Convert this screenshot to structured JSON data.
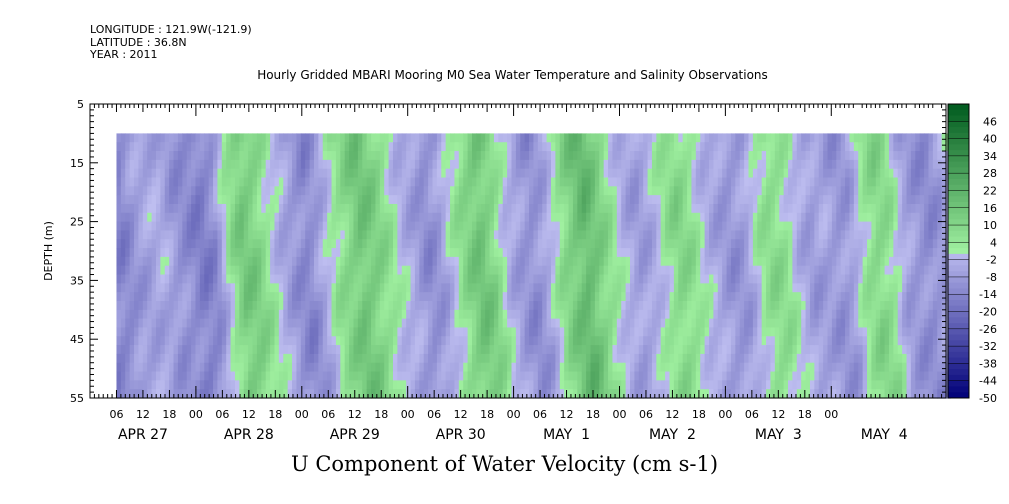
{
  "header": {
    "longitude": "LONGITUDE : 121.9W(-121.9)",
    "latitude": "LATITUDE : 36.8N",
    "year": "YEAR : 2011",
    "title": "Hourly Gridded MBARI Mooring M0 Sea Water Temperature and Salinity Observations"
  },
  "chart_data": {
    "type": "heatmap",
    "title": "Hourly Gridded MBARI Mooring M0 Sea Water Temperature and Salinity Observations",
    "xlabel": "U Component of Water Velocity (cm s-1)",
    "ylabel": "DEPTH (m)",
    "y_ticks": [
      5,
      15,
      25,
      35,
      45,
      55
    ],
    "ylim": [
      55,
      5
    ],
    "y_data_range": [
      10,
      55
    ],
    "x_hour_ticks": [
      "06",
      "12",
      "18",
      "00",
      "06",
      "12",
      "18",
      "00",
      "06",
      "12",
      "18",
      "00",
      "06",
      "12",
      "18",
      "00",
      "06",
      "12",
      "18",
      "00",
      "06",
      "12",
      "18",
      "00",
      "06",
      "12",
      "18",
      "00"
    ],
    "x_day_labels": [
      "APR 27",
      "APR 28",
      "APR 29",
      "APR 30",
      "MAY  1",
      "MAY  2",
      "MAY  3",
      "MAY  4"
    ],
    "time_range_hours": [
      0,
      194
    ],
    "data_time_range_hours": [
      6,
      195
    ],
    "colorbar": {
      "levels": [
        "46",
        "40",
        "34",
        "28",
        "22",
        "16",
        "10",
        "4",
        "-2",
        "-8",
        "-14",
        "-20",
        "-26",
        "-32",
        "-38",
        "-44",
        "-50"
      ],
      "min": -50,
      "max": 52
    },
    "u_profile_by_time": [
      [
        6,
        -14
      ],
      [
        9,
        -8
      ],
      [
        12,
        -6
      ],
      [
        15,
        -4
      ],
      [
        18,
        -10
      ],
      [
        21,
        -12
      ],
      [
        24,
        -16
      ],
      [
        27,
        -12
      ],
      [
        30,
        4
      ],
      [
        33,
        14
      ],
      [
        36,
        12
      ],
      [
        39,
        4
      ],
      [
        42,
        -4
      ],
      [
        45,
        -10
      ],
      [
        48,
        -14
      ],
      [
        51,
        -6
      ],
      [
        54,
        4
      ],
      [
        57,
        10
      ],
      [
        60,
        16
      ],
      [
        63,
        12
      ],
      [
        66,
        6
      ],
      [
        69,
        -2
      ],
      [
        72,
        -6
      ],
      [
        75,
        -12
      ],
      [
        78,
        -8
      ],
      [
        81,
        2
      ],
      [
        84,
        10
      ],
      [
        87,
        16
      ],
      [
        90,
        10
      ],
      [
        93,
        -2
      ],
      [
        96,
        -8
      ],
      [
        99,
        -12
      ],
      [
        102,
        -6
      ],
      [
        105,
        6
      ],
      [
        108,
        14
      ],
      [
        111,
        20
      ],
      [
        114,
        12
      ],
      [
        117,
        4
      ],
      [
        120,
        -4
      ],
      [
        123,
        -8
      ],
      [
        126,
        -4
      ],
      [
        129,
        4
      ],
      [
        132,
        10
      ],
      [
        135,
        6
      ],
      [
        138,
        -2
      ],
      [
        141,
        -6
      ],
      [
        144,
        -10
      ],
      [
        147,
        -8
      ],
      [
        150,
        2
      ],
      [
        153,
        8
      ],
      [
        156,
        6
      ],
      [
        159,
        -2
      ],
      [
        162,
        -8
      ],
      [
        165,
        -6
      ],
      [
        168,
        -10
      ],
      [
        171,
        -8
      ],
      [
        174,
        4
      ],
      [
        177,
        10
      ],
      [
        180,
        6
      ],
      [
        183,
        -6
      ],
      [
        186,
        -10
      ],
      [
        189,
        -12
      ],
      [
        192,
        -8
      ],
      [
        195,
        4
      ]
    ]
  }
}
